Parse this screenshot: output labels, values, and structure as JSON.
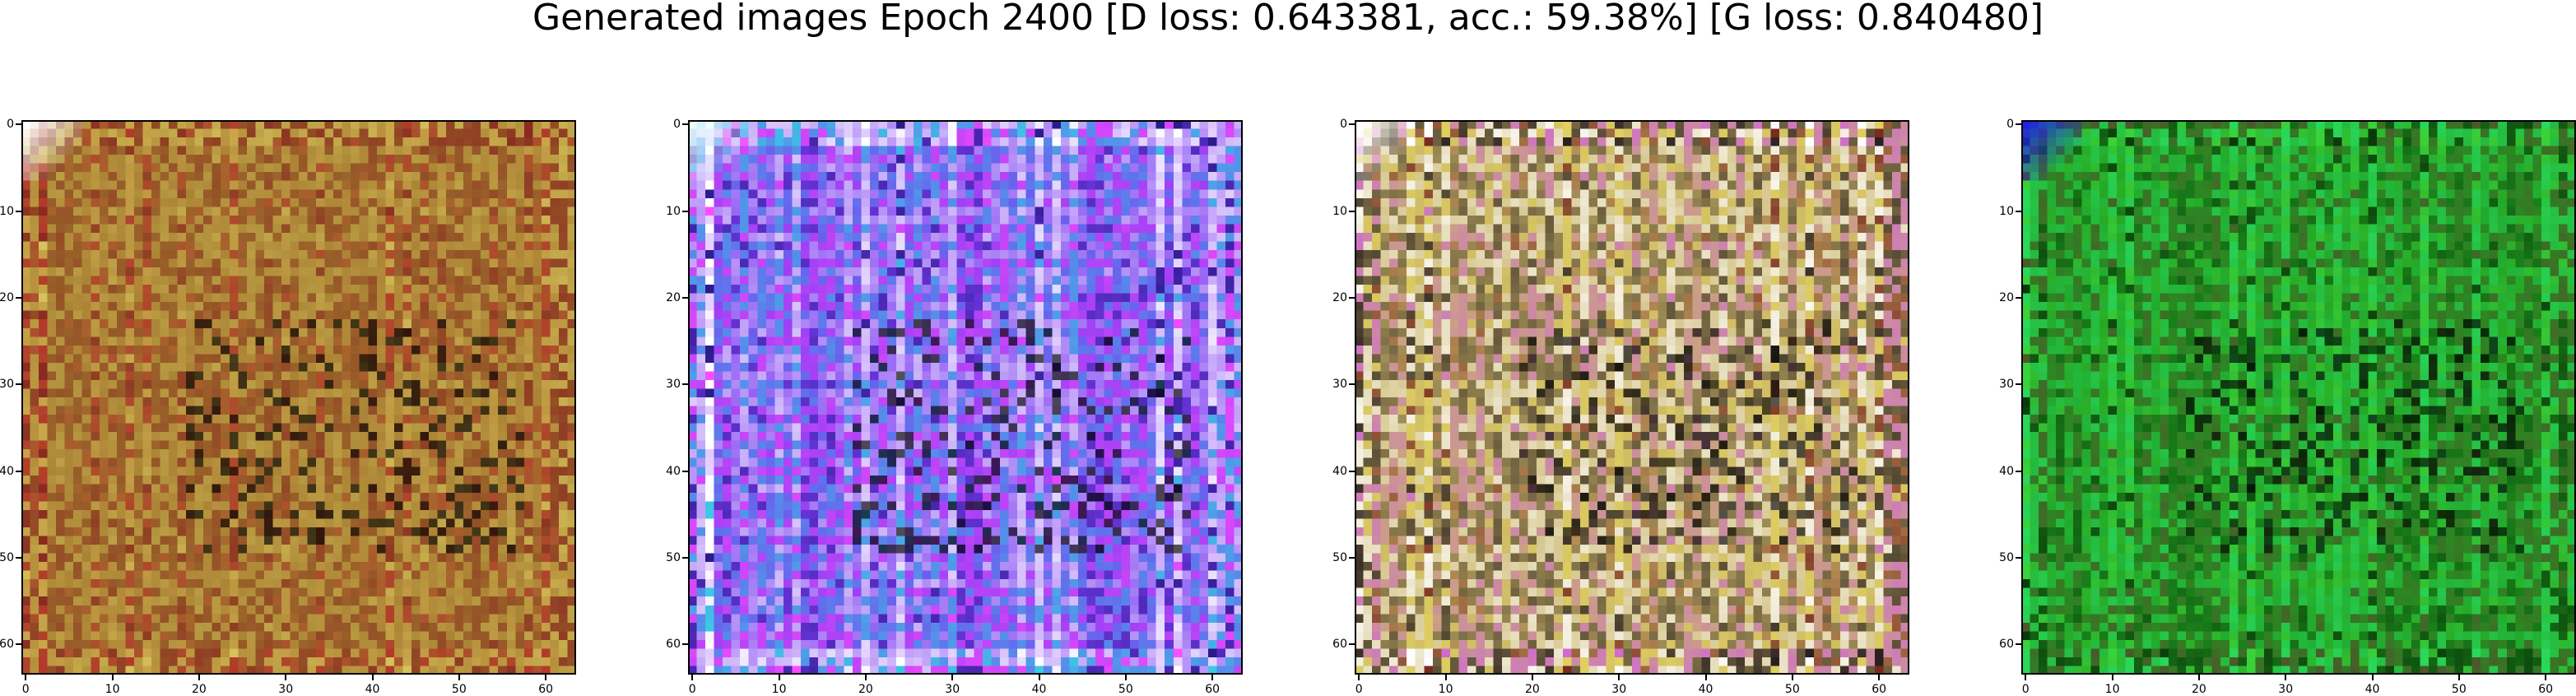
{
  "figure": {
    "title": "Generated images Epoch 2400 [D loss: 0.643381, acc.: 59.38%] [G loss: 0.840480]"
  },
  "axes": {
    "x_ticks": [
      "0",
      "10",
      "20",
      "30",
      "40",
      "50",
      "60"
    ],
    "y_ticks": [
      "0",
      "10",
      "20",
      "30",
      "40",
      "50",
      "60"
    ],
    "xlim": [
      -0.5,
      63.5
    ],
    "ylim": [
      63.5,
      -0.5
    ]
  },
  "images": [
    {
      "resolution": 64,
      "dominant_color": "olive / dark red",
      "base": "#a0782e",
      "accents": [
        "#b33a2a",
        "#d6c25a",
        "#8a2a20",
        "#c9a64a"
      ],
      "corner": "#ffffff"
    },
    {
      "resolution": 64,
      "dominant_color": "blue / magenta",
      "base": "#7a3cf0",
      "accents": [
        "#e6d2ff",
        "#2a1a8a",
        "#ff4dff",
        "#3cc8e6",
        "#ffffff"
      ],
      "corner": "#e8ffff"
    },
    {
      "resolution": 64,
      "dominant_color": "yellow / multicolor",
      "base": "#c8b468",
      "accents": [
        "#e0d060",
        "#7a2a20",
        "#d06ad0",
        "#2a2020",
        "#ffffff"
      ],
      "corner": "#ffffff"
    },
    {
      "resolution": 64,
      "dominant_color": "green",
      "base": "#1f9a1f",
      "accents": [
        "#3ad23a",
        "#0a3a0a",
        "#4a5a2a",
        "#2ad85a"
      ],
      "corner": "#2020e0"
    }
  ]
}
